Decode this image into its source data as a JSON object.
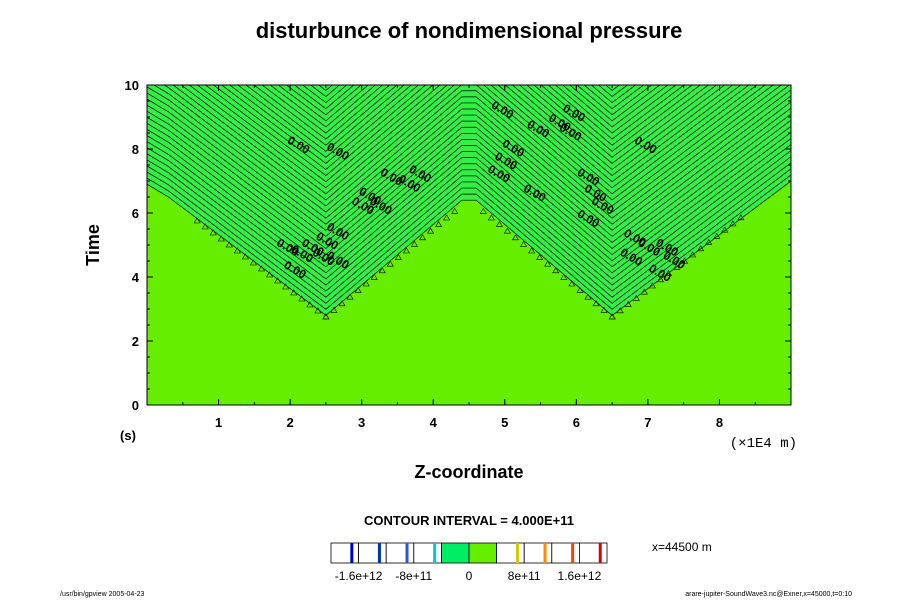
{
  "chart_data": {
    "type": "heatmap",
    "title": "disturbunce of nondimensional pressure",
    "xlabel": "Z-coordinate",
    "ylabel": "Time",
    "x_unit_label": "(×1E4  m)",
    "y_unit_label": "(s)",
    "xlim": [
      0,
      9
    ],
    "ylim": [
      0,
      10
    ],
    "xticks": [
      "1",
      "2",
      "3",
      "4",
      "5",
      "6",
      "7",
      "8"
    ],
    "xtick_values": [
      1,
      2,
      3,
      4,
      5,
      6,
      7,
      8
    ],
    "yticks": [
      "0",
      "2",
      "4",
      "6",
      "8",
      "10"
    ],
    "ytick_values": [
      0,
      2,
      4,
      6,
      8,
      10
    ],
    "contour_labels": [
      {
        "x": 1.95,
        "y": 8.2,
        "text": "0.00"
      },
      {
        "x": 2.5,
        "y": 8.0,
        "text": "0.00"
      },
      {
        "x": 3.25,
        "y": 7.2,
        "text": "0.00"
      },
      {
        "x": 3.5,
        "y": 7.0,
        "text": "0.00"
      },
      {
        "x": 3.65,
        "y": 7.3,
        "text": "0.00"
      },
      {
        "x": 2.85,
        "y": 6.3,
        "text": "0.00"
      },
      {
        "x": 2.95,
        "y": 6.6,
        "text": "0.00"
      },
      {
        "x": 3.1,
        "y": 6.3,
        "text": "0.00"
      },
      {
        "x": 2.5,
        "y": 5.5,
        "text": "0.00"
      },
      {
        "x": 2.35,
        "y": 5.2,
        "text": "0.00"
      },
      {
        "x": 2.15,
        "y": 5.0,
        "text": "0.00"
      },
      {
        "x": 1.8,
        "y": 5.0,
        "text": "0.00"
      },
      {
        "x": 2.0,
        "y": 4.8,
        "text": "0.00"
      },
      {
        "x": 2.3,
        "y": 4.7,
        "text": "0.00"
      },
      {
        "x": 2.5,
        "y": 4.6,
        "text": "0.00"
      },
      {
        "x": 1.9,
        "y": 4.3,
        "text": "0.00"
      },
      {
        "x": 4.8,
        "y": 9.3,
        "text": "0.00"
      },
      {
        "x": 5.3,
        "y": 8.7,
        "text": "0.00"
      },
      {
        "x": 5.8,
        "y": 9.2,
        "text": "0.00"
      },
      {
        "x": 5.6,
        "y": 8.9,
        "text": "0.00"
      },
      {
        "x": 5.75,
        "y": 8.6,
        "text": "0.00"
      },
      {
        "x": 4.95,
        "y": 8.1,
        "text": "0.00"
      },
      {
        "x": 4.85,
        "y": 7.7,
        "text": "0.00"
      },
      {
        "x": 4.75,
        "y": 7.3,
        "text": "0.00"
      },
      {
        "x": 6.0,
        "y": 7.2,
        "text": "0.00"
      },
      {
        "x": 6.1,
        "y": 6.7,
        "text": "0.00"
      },
      {
        "x": 6.2,
        "y": 6.3,
        "text": "0.00"
      },
      {
        "x": 6.0,
        "y": 5.9,
        "text": "0.00"
      },
      {
        "x": 5.25,
        "y": 6.7,
        "text": "0.00"
      },
      {
        "x": 6.8,
        "y": 8.2,
        "text": "0.00"
      },
      {
        "x": 6.65,
        "y": 5.3,
        "text": "0.00"
      },
      {
        "x": 6.85,
        "y": 5.0,
        "text": "0.00"
      },
      {
        "x": 7.1,
        "y": 5.0,
        "text": "0.00"
      },
      {
        "x": 6.6,
        "y": 4.7,
        "text": "0.00"
      },
      {
        "x": 7.2,
        "y": 4.6,
        "text": "0.00"
      },
      {
        "x": 7.0,
        "y": 4.2,
        "text": "0.00"
      }
    ],
    "colorbar": {
      "title": "CONTOUR INTERVAL = 4.000E+11",
      "tick_labels": [
        "-1.6e+12",
        "-8e+11",
        "0",
        "8e+11",
        "1.6e+12"
      ],
      "segments": [
        {
          "fill": "#ffffff",
          "line": "#0000cc"
        },
        {
          "fill": "#ffffff",
          "line": "#0033aa"
        },
        {
          "fill": "#ffffff",
          "line": "#3355cc"
        },
        {
          "fill": "#ffffff",
          "line": "#00cccc"
        },
        {
          "fill": "#00ee66",
          "line": ""
        },
        {
          "fill": "#66ee00",
          "line": ""
        },
        {
          "fill": "#ffffff",
          "line": "#cccc00"
        },
        {
          "fill": "#ffffff",
          "line": "#ff8800"
        },
        {
          "fill": "#ffffff",
          "line": "#ff4400"
        },
        {
          "fill": "#ffffff",
          "line": "#dd0000"
        }
      ]
    },
    "colors": {
      "background_field": "#66ee00",
      "wave_field": "#33ee44",
      "contour_line": "#000000"
    },
    "grid": false,
    "legend": "bottom-center"
  },
  "annotations": {
    "slice_label": "x=44500 m",
    "footer_left": "/usr/bin/gpview 2005-04-23",
    "footer_right": "arare-jupiter-SoundWave3.nc@Exner,x=45000,t=0:10"
  }
}
